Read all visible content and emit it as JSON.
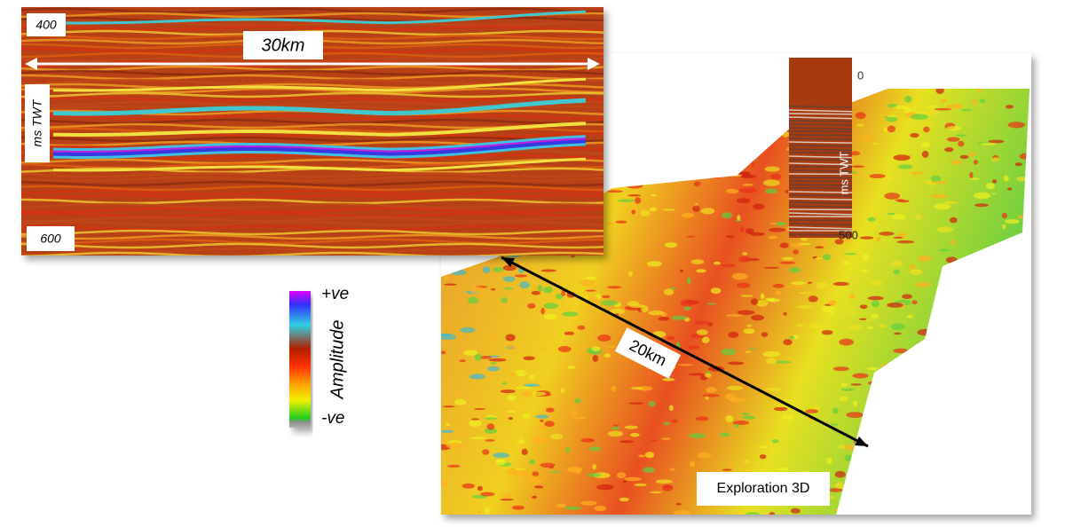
{
  "section": {
    "top_time": "400",
    "width_label": "30km",
    "axis_label": "ms TWT",
    "bottom_time": "600"
  },
  "colorbar": {
    "max_label": "+ve",
    "title": "Amplitude",
    "min_label": "-ve"
  },
  "volume": {
    "well_top": "0",
    "well_axis_label": "ms TWT",
    "well_bottom": "500",
    "length_label": "20km",
    "caption": "Exploration 3D"
  }
}
